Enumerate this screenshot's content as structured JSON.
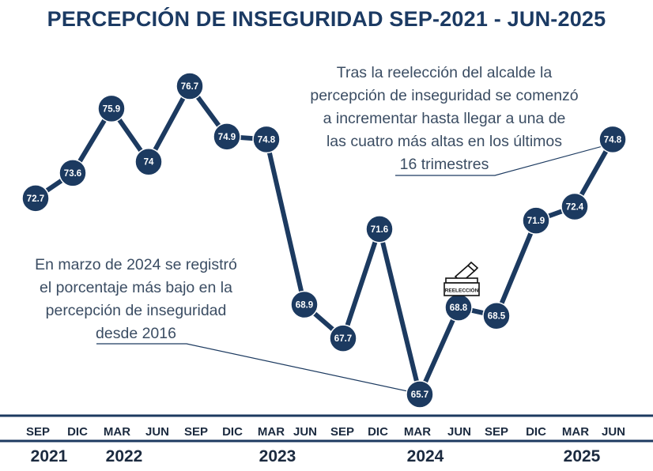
{
  "title": "PERCEPCIÓN DE INSEGURIDAD SEP-2021 - JUN-2025",
  "colors": {
    "line": "#1c3a60",
    "marker": "#1c3a60",
    "title": "#1b3a63",
    "text": "#3b4d63",
    "axis": "#1c3a60"
  },
  "chart_data": {
    "type": "line",
    "title": "PERCEPCIÓN DE INSEGURIDAD SEP-2021 - JUN-2025",
    "categories": [
      "SEP",
      "DIC",
      "MAR",
      "JUN",
      "SEP",
      "DIC",
      "MAR",
      "JUN",
      "SEP",
      "DIC",
      "MAR",
      "JUN",
      "SEP",
      "DIC",
      "MAR",
      "JUN"
    ],
    "years": [
      "2021",
      "2022",
      "2023",
      "2024",
      "2025"
    ],
    "series": [
      {
        "values": [
          72.7,
          73.6,
          75.9,
          74.0,
          76.7,
          74.9,
          74.8,
          68.9,
          67.7,
          71.6,
          65.7,
          68.8,
          68.5,
          71.9,
          72.4,
          74.8
        ]
      }
    ],
    "point_labels": [
      "72.7",
      "73.6",
      "75.9",
      "74",
      "76.7",
      "74.9",
      "74.8",
      "68.9",
      "67.7",
      "71.6",
      "65.7",
      "68.8",
      "68.5",
      "71.9",
      "72.4",
      "74.8"
    ],
    "ylim": [
      64,
      78
    ],
    "grid": false,
    "legend": "none",
    "annotations": [
      {
        "lines": [
          "Tras la reelección del alcalde la",
          "percepción de inseguridad se comenzó",
          "a incrementar hasta llegar a una de",
          "las cuatro más altas en los últimos",
          "16 trimestres"
        ],
        "points_to_index": 15
      },
      {
        "lines": [
          "En marzo de 2024 se registró",
          "el porcentaje más bajo en la",
          "percepción de inseguridad",
          "desde 2016"
        ],
        "points_to_index": 10
      }
    ],
    "icon": {
      "name": "ballot-box-icon",
      "label": "REELECCIÓN",
      "at_index": 11
    }
  }
}
